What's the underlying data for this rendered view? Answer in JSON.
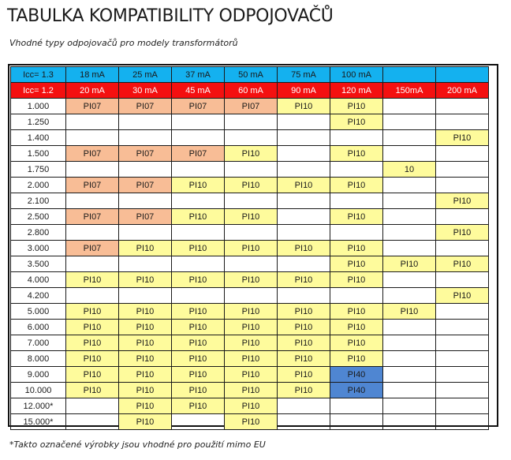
{
  "title": "TABULKA KOMPATIBILITY ODPOJOVAČŮ",
  "subtitle": "Vhodné typy odpojovačů pro modely transformátorů",
  "header_rows": [
    [
      "Icc= 1.3",
      "18 mA",
      "25 mA",
      "37 mA",
      "50 mA",
      "75 mA",
      "100 mA",
      "",
      ""
    ],
    [
      "Icc= 1.2",
      "20 mA",
      "30 mA",
      "45 mA",
      "60 mA",
      "90 mA",
      "120 mA",
      "150mA",
      "200 mA"
    ]
  ],
  "rows": [
    [
      "1.000",
      "PI07",
      "PI07",
      "PI07",
      "PI07",
      "PI10",
      "PI10",
      "",
      ""
    ],
    [
      "1.250",
      "",
      "",
      "",
      "",
      "",
      "PI10",
      "",
      ""
    ],
    [
      "1.400",
      "",
      "",
      "",
      "",
      "",
      "",
      "",
      "PI10"
    ],
    [
      "1.500",
      "PI07",
      "PI07",
      "PI07",
      "PI10",
      "",
      "PI10",
      "",
      ""
    ],
    [
      "1.750",
      "",
      "",
      "",
      "",
      "",
      "",
      "10",
      ""
    ],
    [
      "2.000",
      "PI07",
      "PI07",
      "PI10",
      "PI10",
      "PI10",
      "PI10",
      "",
      ""
    ],
    [
      "2.100",
      "",
      "",
      "",
      "",
      "",
      "",
      "",
      "PI10"
    ],
    [
      "2.500",
      "PI07",
      "PI07",
      "PI10",
      "PI10",
      "",
      "PI10",
      "",
      ""
    ],
    [
      "2.800",
      "",
      "",
      "",
      "",
      "",
      "",
      "",
      "PI10"
    ],
    [
      "3.000",
      "PI07",
      "PI10",
      "PI10",
      "PI10",
      "PI10",
      "PI10",
      "",
      ""
    ],
    [
      "3.500",
      "",
      "",
      "",
      "",
      "",
      "PI10",
      "PI10",
      "PI10"
    ],
    [
      "4.000",
      "PI10",
      "PI10",
      "PI10",
      "PI10",
      "PI10",
      "PI10",
      "",
      ""
    ],
    [
      "4.200",
      "",
      "",
      "",
      "",
      "",
      "",
      "",
      "PI10"
    ],
    [
      "5.000",
      "PI10",
      "PI10",
      "PI10",
      "PI10",
      "PI10",
      "PI10",
      "PI10",
      ""
    ],
    [
      "6.000",
      "PI10",
      "PI10",
      "PI10",
      "PI10",
      "PI10",
      "PI10",
      "",
      ""
    ],
    [
      "7.000",
      "PI10",
      "PI10",
      "PI10",
      "PI10",
      "PI10",
      "PI10",
      "",
      ""
    ],
    [
      "8.000",
      "PI10",
      "PI10",
      "PI10",
      "PI10",
      "PI10",
      "PI10",
      "",
      ""
    ],
    [
      "9.000",
      "PI10",
      "PI10",
      "PI10",
      "PI10",
      "PI10",
      "PI40",
      "",
      ""
    ],
    [
      "10.000",
      "PI10",
      "PI10",
      "PI10",
      "PI10",
      "PI10",
      "PI40",
      "",
      ""
    ],
    [
      "12.000*",
      "",
      "PI10",
      "PI10",
      "PI10",
      "",
      "",
      "",
      ""
    ],
    [
      "15.000*",
      "",
      "PI10",
      "",
      "PI10",
      "",
      "",
      "",
      ""
    ]
  ],
  "footnote": "*Takto označené výrobky jsou vhodné pro použití mimo EU",
  "colors": {
    "header_blue": "#14b1ef",
    "header_red": "#f41010",
    "PI07": "#f8bd96",
    "PI10": "#fefb9c",
    "PI40": "#4f86d2"
  }
}
